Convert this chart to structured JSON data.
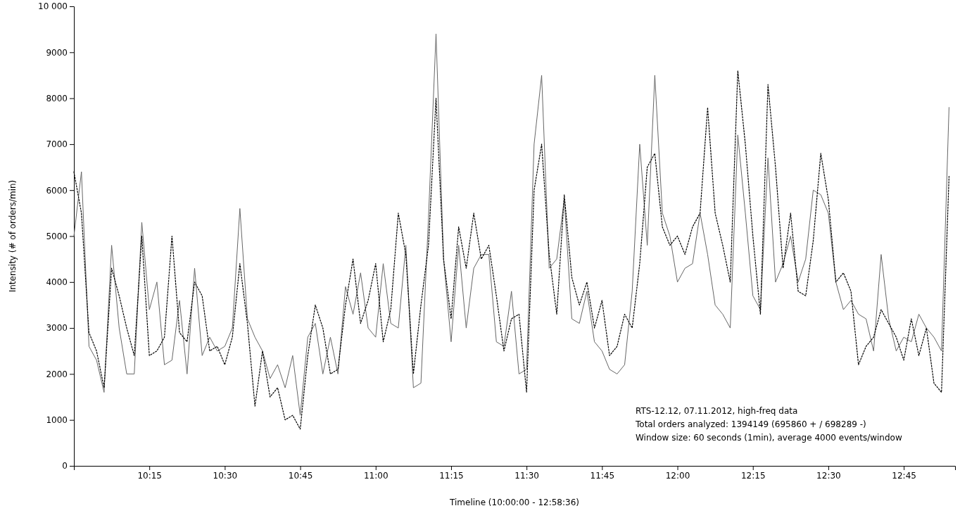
{
  "chart_data": {
    "type": "line",
    "xlabel": "Timeline (10:00:00 - 12:58:36)",
    "ylabel": "Intensity (# of orders/min)",
    "annotations": [
      "RTS-12.12, 07.11.2012, high-freq data",
      "Total orders analyzed: 1394149 (695860 + / 698289 -)",
      "Window size: 60 seconds (1min), average 4000 events/window"
    ],
    "xlim": [
      10,
      12.92
    ],
    "xticks": [
      {
        "value": 10.25,
        "label": "10:15"
      },
      {
        "value": 10.5,
        "label": "10:30"
      },
      {
        "value": 10.75,
        "label": "10:45"
      },
      {
        "value": 11,
        "label": "11:00"
      },
      {
        "value": 11.25,
        "label": "11:15"
      },
      {
        "value": 11.5,
        "label": "11:30"
      },
      {
        "value": 11.75,
        "label": "11:45"
      },
      {
        "value": 12,
        "label": "12:00"
      },
      {
        "value": 12.25,
        "label": "12:15"
      },
      {
        "value": 12.5,
        "label": "12:30"
      },
      {
        "value": 12.75,
        "label": "12:45"
      }
    ],
    "ylim": [
      0,
      10000
    ],
    "yticks": [
      0,
      1000,
      2000,
      3000,
      4000,
      5000,
      6000,
      7000,
      8000,
      9000,
      {
        "value": 10000,
        "label": "10 000"
      }
    ],
    "x": [
      10,
      10.025,
      10.05,
      10.075,
      10.1,
      10.125,
      10.15,
      10.175,
      10.2,
      10.225,
      10.25,
      10.275,
      10.3,
      10.325,
      10.35,
      10.375,
      10.4,
      10.425,
      10.45,
      10.475,
      10.5,
      10.525,
      10.55,
      10.575,
      10.6,
      10.625,
      10.65,
      10.675,
      10.7,
      10.725,
      10.75,
      10.775,
      10.8,
      10.825,
      10.85,
      10.875,
      10.9,
      10.925,
      10.95,
      10.975,
      11,
      11.025,
      11.05,
      11.075,
      11.1,
      11.125,
      11.15,
      11.175,
      11.2,
      11.225,
      11.25,
      11.275,
      11.3,
      11.325,
      11.35,
      11.375,
      11.4,
      11.425,
      11.45,
      11.475,
      11.5,
      11.525,
      11.55,
      11.575,
      11.6,
      11.625,
      11.65,
      11.675,
      11.7,
      11.725,
      11.75,
      11.775,
      11.8,
      11.825,
      11.85,
      11.875,
      11.9,
      11.925,
      11.95,
      11.975,
      12,
      12.025,
      12.05,
      12.075,
      12.1,
      12.125,
      12.15,
      12.175,
      12.2,
      12.225,
      12.25,
      12.275,
      12.3,
      12.325,
      12.35,
      12.375,
      12.4,
      12.425,
      12.45,
      12.475,
      12.5,
      12.525,
      12.55,
      12.575,
      12.6,
      12.625,
      12.65,
      12.675,
      12.7,
      12.725,
      12.75,
      12.775,
      12.8,
      12.825,
      12.85,
      12.875,
      12.9
    ],
    "series": [
      {
        "color": "#666666",
        "line_style": "solid",
        "values": [
          5000,
          6400,
          2600,
          2300,
          1600,
          4800,
          3000,
          2000,
          2000,
          5300,
          3400,
          4000,
          2200,
          2300,
          3600,
          2000,
          4300,
          2400,
          2800,
          2500,
          2600,
          3000,
          5600,
          3200,
          2800,
          2500,
          1900,
          2200,
          1700,
          2400,
          1100,
          2800,
          3100,
          2000,
          2800,
          2000,
          3900,
          3300,
          4200,
          3000,
          2800,
          4400,
          3100,
          3000,
          4800,
          1700,
          1800,
          5400,
          9400,
          4500,
          2700,
          4800,
          3000,
          4300,
          4600,
          4600,
          2700,
          2600,
          3800,
          2000,
          2100,
          7000,
          8500,
          4300,
          4500,
          5800,
          3200,
          3100,
          3800,
          2700,
          2500,
          2100,
          2000,
          2200,
          3800,
          7000,
          4800,
          8500,
          5500,
          5000,
          4000,
          4300,
          4400,
          5500,
          4600,
          3500,
          3300,
          3000,
          7200,
          5500,
          3700,
          3400,
          6700,
          4000,
          4400,
          5000,
          4000,
          4500,
          6000,
          5900,
          5500,
          4000,
          3400,
          3600,
          3300,
          3200,
          2500,
          4600,
          3200,
          2500,
          2800,
          2700,
          3300,
          3000,
          2800,
          2500,
          7800
        ]
      },
      {
        "color": "#000000",
        "line_style": "dotted",
        "values": [
          6400,
          5500,
          2900,
          2500,
          1700,
          4300,
          3700,
          3000,
          2400,
          5000,
          2400,
          2500,
          2800,
          5000,
          2900,
          2700,
          4000,
          3700,
          2500,
          2600,
          2200,
          2800,
          4400,
          3100,
          1300,
          2500,
          1500,
          1700,
          1000,
          1100,
          800,
          2400,
          3500,
          3000,
          2000,
          2100,
          3500,
          4500,
          3100,
          3600,
          4400,
          2700,
          3400,
          5500,
          4600,
          2000,
          3500,
          4800,
          8000,
          4500,
          3200,
          5200,
          4300,
          5500,
          4500,
          4800,
          3700,
          2500,
          3200,
          3300,
          1600,
          6000,
          7000,
          4600,
          3300,
          5900,
          4100,
          3500,
          4000,
          3000,
          3600,
          2400,
          2600,
          3300,
          3000,
          4400,
          6500,
          6800,
          5200,
          4800,
          5000,
          4600,
          5200,
          5500,
          7800,
          5500,
          4800,
          4000,
          8600,
          7000,
          5000,
          3300,
          8300,
          6500,
          4300,
          5500,
          3800,
          3700,
          4900,
          6800,
          5800,
          4000,
          4200,
          3800,
          2200,
          2600,
          2800,
          3400,
          3100,
          2800,
          2300,
          3200,
          2400,
          3000,
          1800,
          1600,
          6300
        ]
      }
    ]
  }
}
